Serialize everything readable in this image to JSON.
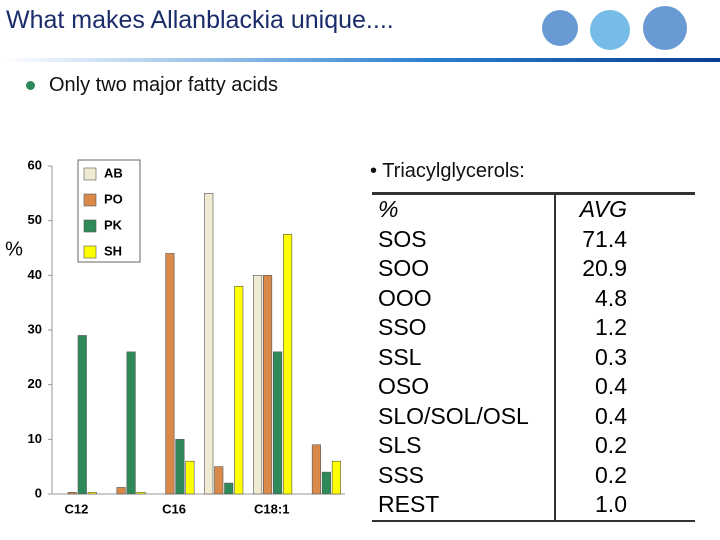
{
  "header": {
    "title": "What makes Allanblackia unique...."
  },
  "bullet": "Only two major fatty acids",
  "chart_data": {
    "type": "bar",
    "y_label": "%",
    "categories": [
      "C12",
      null,
      "C16",
      null,
      "C18:1",
      null
    ],
    "series": [
      {
        "name": "AB",
        "color": "#efead2",
        "values": [
          0,
          0,
          0,
          55,
          40,
          0
        ]
      },
      {
        "name": "PO",
        "color": "#d9894a",
        "values": [
          0.3,
          1.2,
          44,
          5,
          40,
          9
        ]
      },
      {
        "name": "PK",
        "color": "#2f8a5a",
        "values": [
          29,
          26,
          10,
          2,
          26,
          4
        ]
      },
      {
        "name": "SH",
        "color": "#ffff00",
        "values": [
          0.3,
          0.3,
          6,
          38,
          47.5,
          6
        ]
      }
    ],
    "ylim": [
      0,
      60
    ],
    "yticks": [
      0,
      10,
      20,
      30,
      40,
      50,
      60
    ],
    "legend": "top-left"
  },
  "table_title": "• Triacylglycerols:",
  "table": {
    "header": [
      "%",
      "AVG"
    ],
    "rows": [
      [
        "SOS",
        "71.4"
      ],
      [
        "SOO",
        "20.9"
      ],
      [
        "OOO",
        "4.8"
      ],
      [
        "SSO",
        "1.2"
      ],
      [
        "SSL",
        "0.3"
      ],
      [
        "OSO",
        "0.4"
      ],
      [
        "SLO/SOL/OSL",
        "0.4"
      ],
      [
        "SLS",
        "0.2"
      ],
      [
        "SSS",
        "0.2"
      ],
      [
        "REST",
        "1.0"
      ]
    ]
  }
}
